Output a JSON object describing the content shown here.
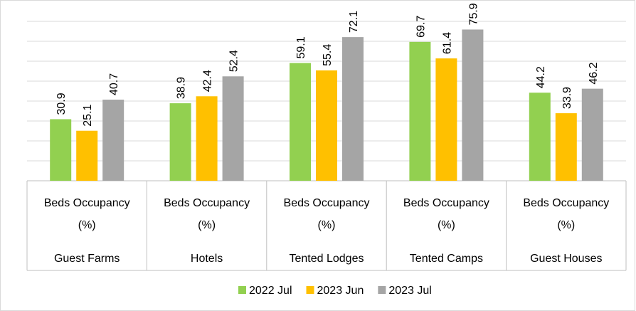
{
  "chart_data": {
    "type": "bar",
    "category_label": "Beds Occupancy (%)",
    "categories": [
      "Guest Farms",
      "Hotels",
      "Tented Lodges",
      "Tented Camps",
      "Guest Houses"
    ],
    "series": [
      {
        "name": "2022 Jul",
        "color": "#92d050",
        "values": [
          30.9,
          38.9,
          59.1,
          69.7,
          44.2
        ]
      },
      {
        "name": "2023 Jun",
        "color": "#ffc000",
        "values": [
          25.1,
          42.4,
          55.4,
          61.4,
          33.9
        ]
      },
      {
        "name": "2023 Jul",
        "color": "#a5a5a5",
        "values": [
          40.7,
          52.4,
          72.1,
          75.9,
          46.2
        ]
      }
    ],
    "ylim": [
      0,
      80
    ],
    "yticks": [
      0,
      10,
      20,
      30,
      40,
      50,
      60,
      70,
      80
    ],
    "grid": true,
    "legend": "bottom"
  }
}
